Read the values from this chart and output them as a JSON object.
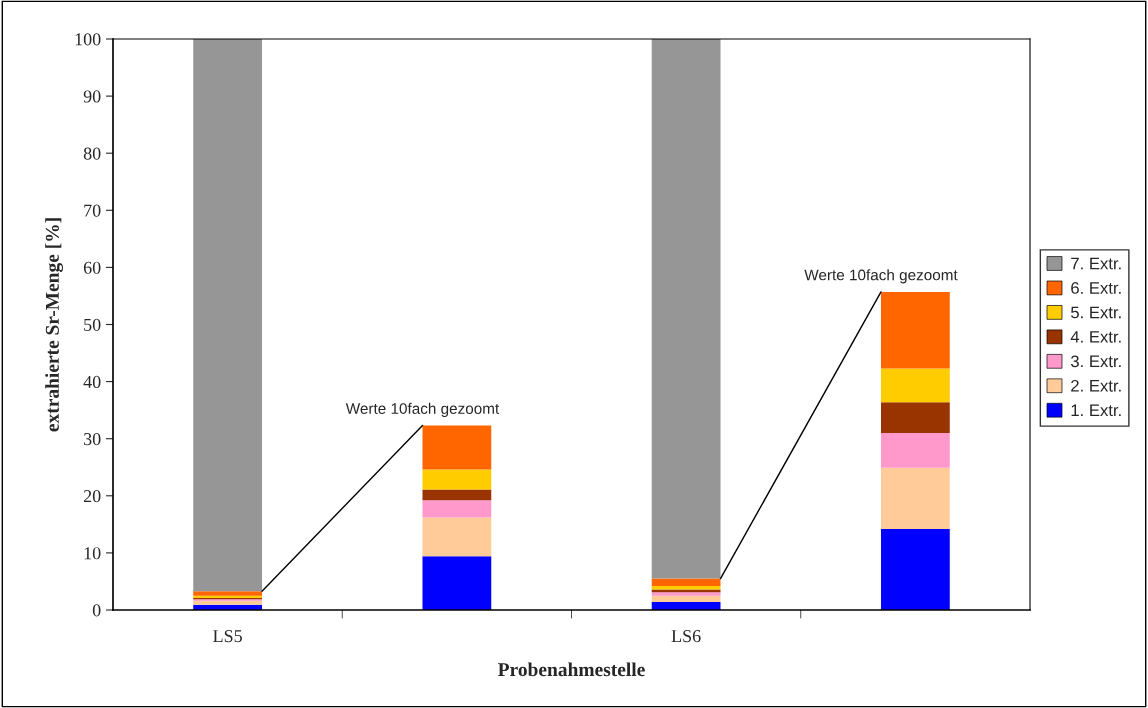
{
  "chart_data": {
    "type": "bar",
    "stacked": true,
    "xlabel": "Probenahmestelle",
    "ylabel": "extrahierte Sr-Menge [%]",
    "categories": [
      "LS5",
      null,
      "LS6",
      null
    ],
    "series": [
      {
        "name": "1. Extr.",
        "color": "#0000ff",
        "values": [
          0.9,
          9.4,
          1.4,
          14.2
        ]
      },
      {
        "name": "2. Extr.",
        "color": "#ffcc99",
        "values": [
          0.7,
          6.8,
          1.1,
          10.7
        ]
      },
      {
        "name": "3. Extr.",
        "color": "#ff99cc",
        "values": [
          0.3,
          3.0,
          0.6,
          6.1
        ]
      },
      {
        "name": "4. Extr.",
        "color": "#993300",
        "values": [
          0.2,
          1.9,
          0.5,
          5.4
        ]
      },
      {
        "name": "5. Extr.",
        "color": "#ffcc00",
        "values": [
          0.4,
          3.5,
          0.6,
          5.9
        ]
      },
      {
        "name": "6. Extr.",
        "color": "#ff6600",
        "values": [
          0.8,
          7.7,
          1.3,
          13.4
        ]
      },
      {
        "name": "7. Extr.",
        "color": "#969696",
        "values": [
          96.7,
          null,
          94.5,
          null
        ]
      }
    ],
    "ylim": [
      0,
      100
    ],
    "yticks": [
      0,
      10,
      20,
      30,
      40,
      50,
      60,
      70,
      80,
      90,
      100
    ],
    "annotations": [
      {
        "text": "Werte 10fach gezoomt",
        "y": 32.3
      },
      {
        "text": "Werte 10fach gezoomt",
        "y": 55.7
      }
    ],
    "legend": "right",
    "grid": false
  }
}
